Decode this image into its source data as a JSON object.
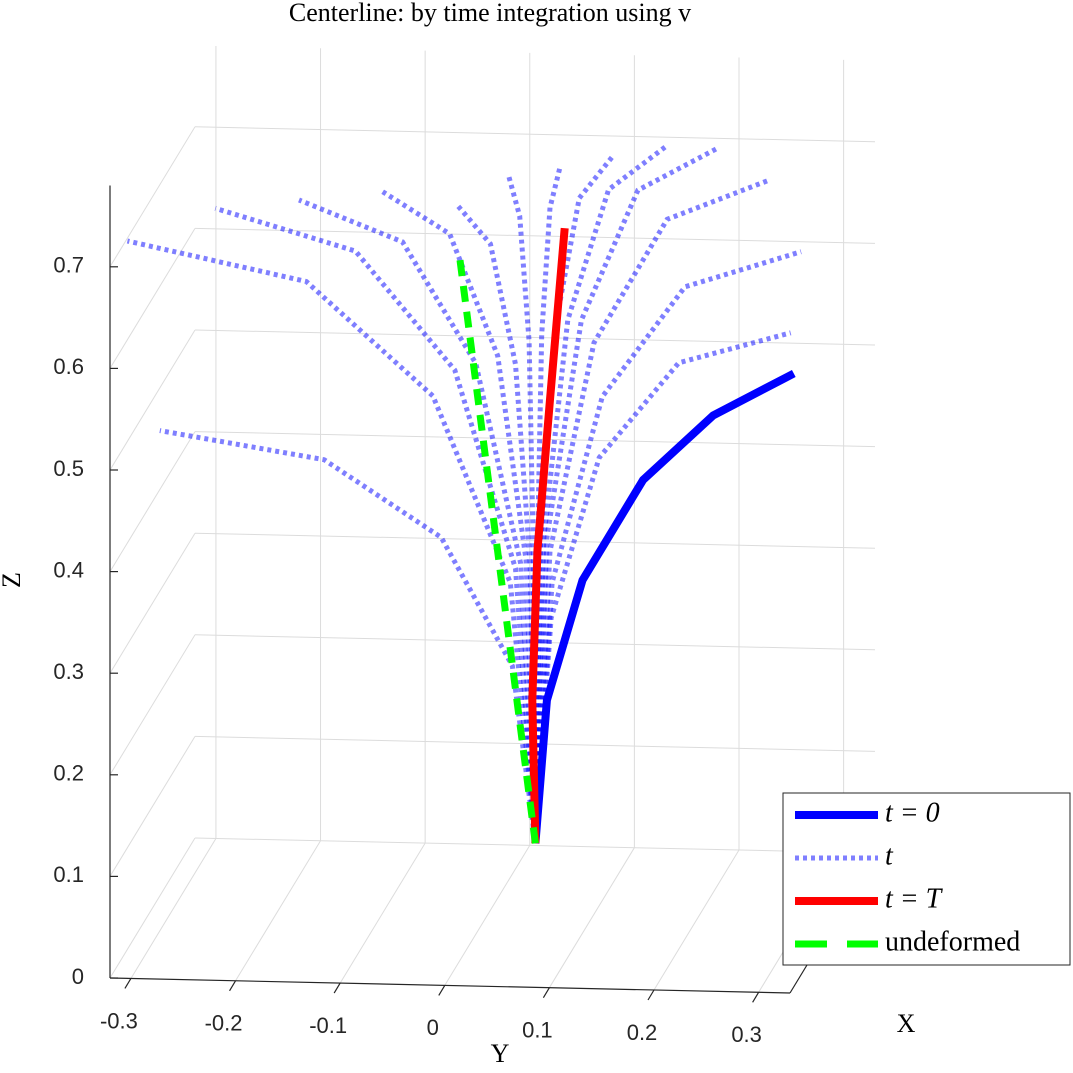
{
  "chart_data": {
    "type": "line3d",
    "title": "Centerline: by time integration using v",
    "xlabel": "X",
    "ylabel": "Y",
    "zlabel": "Z",
    "xlim": [
      -0.2,
      0.2
    ],
    "ylim": [
      -0.32,
      0.33
    ],
    "zlim": [
      0,
      0.78
    ],
    "yticks": [
      -0.3,
      -0.2,
      -0.1,
      0,
      0.1,
      0.2,
      0.3
    ],
    "zticks": [
      0,
      0.1,
      0.2,
      0.3,
      0.4,
      0.5,
      0.6,
      0.7
    ],
    "grid": true,
    "legend": "lower right",
    "series": [
      {
        "name": "t = 0",
        "color": "#0000ff",
        "style": "solid",
        "curves": [
          {
            "x": [
              0,
              0,
              0,
              0,
              0,
              0
            ],
            "y": [
              0.046,
              0.057,
              0.091,
              0.149,
              0.216,
              0.293
            ],
            "z": [
              0.072,
              0.213,
              0.332,
              0.432,
              0.497,
              0.54
            ]
          }
        ]
      },
      {
        "name": "t",
        "color": "#0000ff",
        "style": "dotted",
        "curves": [
          {
            "x": [
              0,
              0,
              0,
              0,
              0
            ],
            "y": [
              0.046,
              0.024,
              -0.044,
              -0.156,
              -0.313
            ],
            "z": [
              0.072,
              0.246,
              0.371,
              0.445,
              0.47
            ]
          },
          {
            "x": [
              0,
              0,
              0,
              0,
              0
            ],
            "y": [
              0.046,
              0.022,
              -0.052,
              -0.173,
              -0.344
            ],
            "z": [
              0.072,
              0.328,
              0.51,
              0.62,
              0.656
            ]
          },
          {
            "x": [
              0,
              0,
              0,
              0,
              0
            ],
            "y": [
              0.046,
              0.027,
              -0.031,
              -0.126,
              -0.26
            ],
            "z": [
              0.072,
              0.342,
              0.536,
              0.651,
              0.69
            ]
          },
          {
            "x": [
              0,
              0,
              0,
              0,
              0
            ],
            "y": [
              0.046,
              0.032,
              -0.011,
              -0.081,
              -0.18
            ],
            "z": [
              0.072,
              0.347,
              0.543,
              0.661,
              0.7
            ]
          },
          {
            "x": [
              0,
              0,
              0,
              0,
              0
            ],
            "y": [
              0.046,
              0.037,
              0.01,
              -0.036,
              -0.1
            ],
            "z": [
              0.072,
              0.351,
              0.551,
              0.67,
              0.71
            ]
          },
          {
            "x": [
              0,
              0,
              0,
              0,
              0
            ],
            "y": [
              0.046,
              0.041,
              0.027,
              0.003,
              -0.03
            ],
            "z": [
              0.072,
              0.347,
              0.543,
              0.661,
              0.7
            ]
          },
          {
            "x": [
              0,
              0,
              0,
              0,
              0
            ],
            "y": [
              0.046,
              0.044,
              0.04,
              0.031,
              0.02
            ],
            "z": [
              0.072,
              0.36,
              0.566,
              0.689,
              0.73
            ]
          },
          {
            "x": [
              0,
              0,
              0,
              0,
              0
            ],
            "y": [
              0.046,
              0.048,
              0.052,
              0.06,
              0.07
            ],
            "z": [
              0.072,
              0.364,
              0.573,
              0.698,
              0.74
            ]
          },
          {
            "x": [
              0,
              0,
              0,
              0,
              0
            ],
            "y": [
              0.046,
              0.051,
              0.065,
              0.088,
              0.12
            ],
            "z": [
              0.072,
              0.369,
              0.581,
              0.708,
              0.75
            ]
          },
          {
            "x": [
              0,
              0,
              0,
              0,
              0
            ],
            "y": [
              0.046,
              0.054,
              0.077,
              0.116,
              0.17
            ],
            "z": [
              0.072,
              0.373,
              0.588,
              0.717,
              0.76
            ]
          },
          {
            "x": [
              0,
              0,
              0,
              0,
              0
            ],
            "y": [
              0.046,
              0.057,
              0.09,
              0.144,
              0.22
            ],
            "z": [
              0.072,
              0.373,
              0.588,
              0.717,
              0.76
            ]
          },
          {
            "x": [
              0,
              0,
              0,
              0,
              0
            ],
            "y": [
              0.046,
              0.06,
              0.102,
              0.172,
              0.27
            ],
            "z": [
              0.072,
              0.36,
              0.566,
              0.689,
              0.73
            ]
          },
          {
            "x": [
              0,
              0,
              0,
              0,
              0
            ],
            "y": [
              0.046,
              0.062,
              0.11,
              0.189,
              0.3
            ],
            "z": [
              0.072,
              0.329,
              0.513,
              0.623,
              0.66
            ]
          },
          {
            "x": [
              0,
              0,
              0,
              0,
              0
            ],
            "y": [
              0.046,
              0.061,
              0.107,
              0.183,
              0.29
            ],
            "z": [
              0.072,
              0.294,
              0.453,
              0.548,
              0.58
            ]
          }
        ]
      },
      {
        "name": "t = T",
        "color": "#ff0000",
        "style": "solid",
        "curves": [
          {
            "x": [
              0,
              0,
              0,
              0,
              0
            ],
            "y": [
              0.046,
              0.043,
              0.048,
              0.06,
              0.074
            ],
            "z": [
              0.072,
              0.213,
              0.361,
              0.509,
              0.678
            ]
          }
        ]
      },
      {
        "name": "undeformed",
        "color": "#00ff00",
        "style": "dashed",
        "curves": [
          {
            "x": [
              0,
              0
            ],
            "y": [
              0.046,
              -0.027
            ],
            "z": [
              0.072,
              0.652
            ]
          }
        ]
      }
    ]
  }
}
